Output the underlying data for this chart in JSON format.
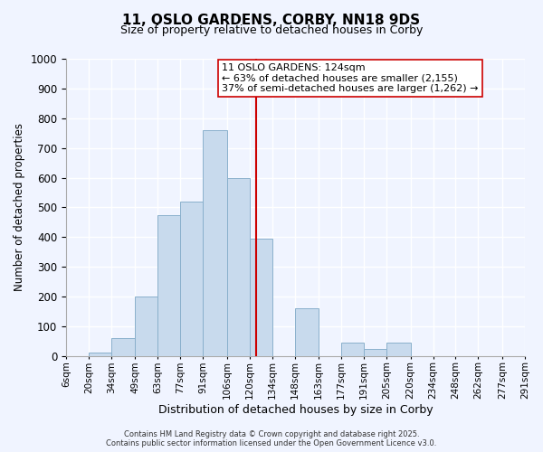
{
  "title": "11, OSLO GARDENS, CORBY, NN18 9DS",
  "subtitle": "Size of property relative to detached houses in Corby",
  "xlabel": "Distribution of detached houses by size in Corby",
  "ylabel": "Number of detached properties",
  "bar_color": "#c8daed",
  "bar_edge_color": "#8ab0cc",
  "bin_edges": [
    6,
    20,
    34,
    49,
    63,
    77,
    91,
    106,
    120,
    134,
    148,
    163,
    177,
    191,
    205,
    220,
    234,
    248,
    262,
    277,
    291
  ],
  "bin_labels": [
    "6sqm",
    "20sqm",
    "34sqm",
    "49sqm",
    "63sqm",
    "77sqm",
    "91sqm",
    "106sqm",
    "120sqm",
    "134sqm",
    "148sqm",
    "163sqm",
    "177sqm",
    "191sqm",
    "205sqm",
    "220sqm",
    "234sqm",
    "248sqm",
    "262sqm",
    "277sqm",
    "291sqm"
  ],
  "bar_heights": [
    0,
    10,
    60,
    200,
    475,
    520,
    760,
    600,
    395,
    0,
    160,
    0,
    45,
    25,
    45,
    0,
    0,
    0,
    0,
    0
  ],
  "property_size": 124,
  "property_label": "11 OSLO GARDENS: 124sqm",
  "annotation_line1": "← 63% of detached houses are smaller (2,155)",
  "annotation_line2": "37% of semi-detached houses are larger (1,262) →",
  "vline_color": "#cc0000",
  "annotation_box_color": "#ffffff",
  "annotation_box_edge": "#cc0000",
  "ylim": [
    0,
    1000
  ],
  "background_color": "#f0f4ff",
  "grid_color": "#ffffff",
  "footer_line1": "Contains HM Land Registry data © Crown copyright and database right 2025.",
  "footer_line2": "Contains public sector information licensed under the Open Government Licence v3.0."
}
